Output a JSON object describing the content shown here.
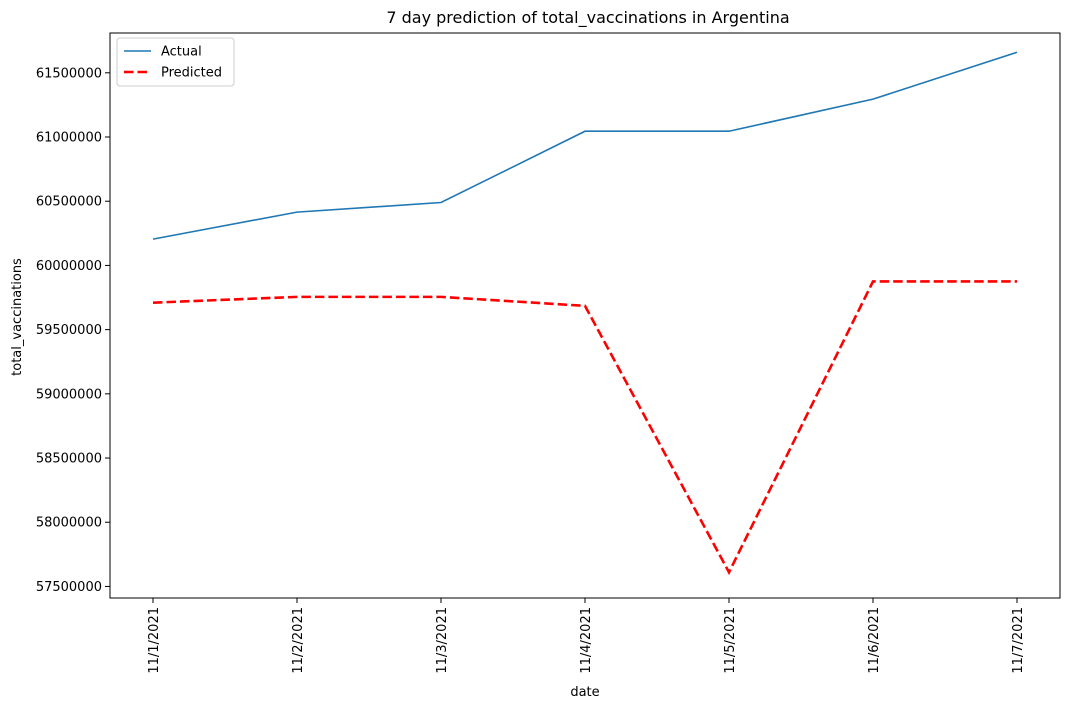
{
  "chart_data": {
    "type": "line",
    "title": "7 day prediction of total_vaccinations in Argentina",
    "xlabel": "date",
    "ylabel": "total_vaccinations",
    "categories": [
      "11/1/2021",
      "11/2/2021",
      "11/3/2021",
      "11/4/2021",
      "11/5/2021",
      "11/6/2021",
      "11/7/2021"
    ],
    "yticks": [
      57500000,
      58000000,
      58500000,
      59000000,
      59500000,
      60000000,
      60500000,
      61000000,
      61500000
    ],
    "ylim": [
      57410000,
      61810000
    ],
    "grid": false,
    "legend_position": "top-left",
    "series": [
      {
        "name": "Actual",
        "color": "#1f77b4",
        "dashed": false,
        "values": [
          60205000,
          60415000,
          60490000,
          61045000,
          61045000,
          61295000,
          61660000
        ]
      },
      {
        "name": "Predicted",
        "color": "#ff0000",
        "dashed": true,
        "values": [
          59710000,
          59755000,
          59755000,
          59685000,
          57610000,
          59875000,
          59875000
        ]
      }
    ]
  }
}
